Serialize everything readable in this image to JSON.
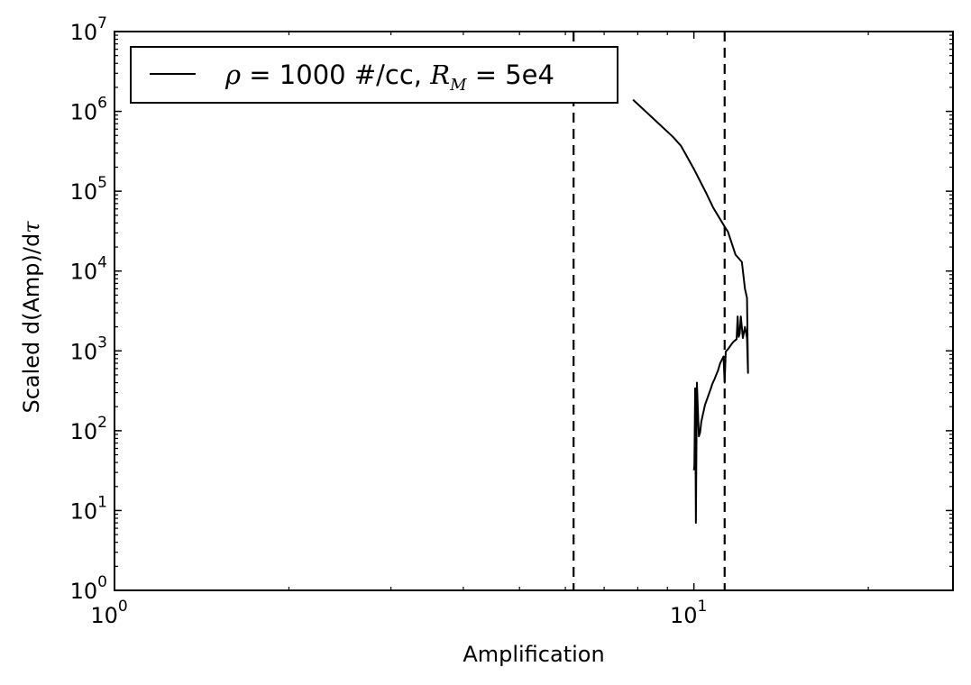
{
  "chart_data": {
    "type": "line",
    "xlabel": "Amplification",
    "ylabel_parts": {
      "prefix": "Scaled d(Amp)/d",
      "symbol": "τ"
    },
    "x_scale": "log",
    "y_scale": "log",
    "xlim": [
      1,
      28
    ],
    "ylim": [
      1,
      10000000
    ],
    "x_ticks": [
      {
        "value": 1,
        "base": "10",
        "exp": "0"
      },
      {
        "value": 10,
        "base": "10",
        "exp": "1"
      }
    ],
    "y_ticks": [
      {
        "value": 1,
        "base": "10",
        "exp": "0"
      },
      {
        "value": 10,
        "base": "10",
        "exp": "1"
      },
      {
        "value": 100,
        "base": "10",
        "exp": "2"
      },
      {
        "value": 1000,
        "base": "10",
        "exp": "3"
      },
      {
        "value": 10000,
        "base": "10",
        "exp": "4"
      },
      {
        "value": 100000,
        "base": "10",
        "exp": "5"
      },
      {
        "value": 1000000,
        "base": "10",
        "exp": "6"
      },
      {
        "value": 10000000,
        "base": "10",
        "exp": "7"
      }
    ],
    "grid": false,
    "legend": {
      "position": "top-left",
      "entries": [
        {
          "parts": [
            {
              "text": "ρ",
              "math": true
            },
            {
              "text": " = 1000 #/cc, ",
              "math": false
            },
            {
              "text": "R",
              "math": true
            },
            {
              "text": "M",
              "math": true,
              "sub": true
            },
            {
              "text": " = 5e4",
              "math": false
            }
          ]
        }
      ]
    },
    "vlines": [
      {
        "x": 6.2,
        "style": "dashed"
      },
      {
        "x": 11.3,
        "style": "dashed"
      }
    ],
    "series": [
      {
        "color": "#000000",
        "style": "solid",
        "points": [
          [
            7.85,
            1400000
          ],
          [
            8.5,
            820000
          ],
          [
            9.2,
            480000
          ],
          [
            9.5,
            370000
          ],
          [
            10.0,
            190000
          ],
          [
            10.5,
            95000
          ],
          [
            10.8,
            62000
          ],
          [
            11.3,
            36000
          ],
          [
            11.45,
            31000
          ],
          [
            11.8,
            16000
          ],
          [
            12.1,
            13000
          ],
          [
            12.25,
            6000
          ],
          [
            12.35,
            4600
          ],
          [
            12.4,
            530
          ],
          [
            12.35,
            1450
          ],
          [
            12.25,
            2000
          ],
          [
            12.15,
            1450
          ],
          [
            12.05,
            2700
          ],
          [
            12.0,
            1650
          ],
          [
            11.95,
            1500
          ],
          [
            11.9,
            2700
          ],
          [
            11.85,
            1400
          ],
          [
            11.7,
            1300
          ],
          [
            11.6,
            1200
          ],
          [
            11.45,
            1050
          ],
          [
            11.35,
            980
          ],
          [
            11.3,
            400
          ],
          [
            11.25,
            850
          ],
          [
            11.1,
            700
          ],
          [
            11.0,
            560
          ],
          [
            10.95,
            520
          ],
          [
            10.85,
            440
          ],
          [
            10.75,
            380
          ],
          [
            10.7,
            340
          ],
          [
            10.6,
            280
          ],
          [
            10.45,
            210
          ],
          [
            10.3,
            130
          ],
          [
            10.25,
            95
          ],
          [
            10.2,
            85
          ],
          [
            10.12,
            400
          ],
          [
            10.08,
            7
          ],
          [
            10.05,
            340
          ],
          [
            10.02,
            36
          ],
          [
            10.0,
            32
          ]
        ]
      }
    ]
  }
}
